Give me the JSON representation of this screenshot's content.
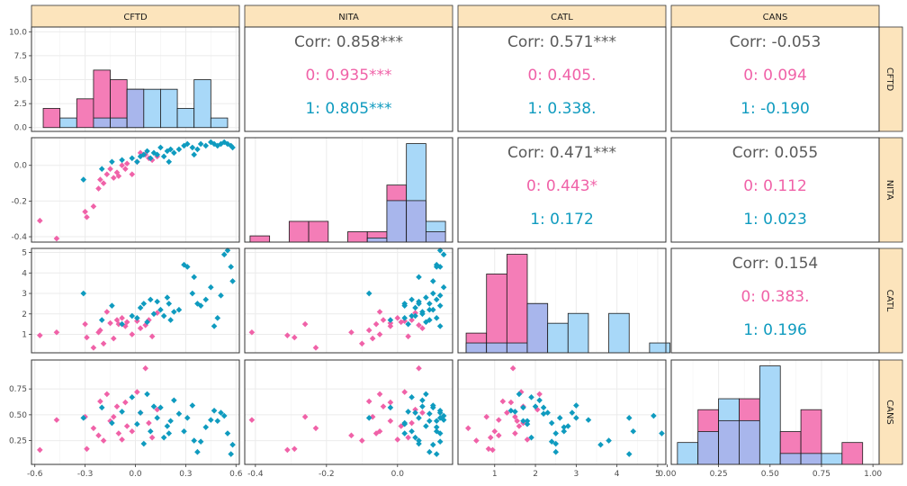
{
  "chart_data": {
    "type": "scatter-matrix",
    "variables": [
      "CFTD",
      "NITA",
      "CATL",
      "CANS"
    ],
    "colors": {
      "group0": "#F062A8",
      "group1": "#0F9BBF",
      "hist0": "#F47DB7",
      "hist1": "#A8D8F8",
      "overlap": "#A8B6EC",
      "strip": "#FCE4BC",
      "overall": "#5A5A5A"
    },
    "axes": {
      "CFTD": {
        "range": [
          -0.62,
          0.62
        ],
        "ticks": [
          "-0.6",
          "-0.3",
          "0.0",
          "0.3",
          "0.6"
        ],
        "tick_values": [
          -0.6,
          -0.3,
          0.0,
          0.3,
          0.6
        ]
      },
      "NITA": {
        "range": [
          -0.43,
          0.155
        ],
        "ticks": [
          "-0.4",
          "-0.2",
          "0.0"
        ],
        "tick_values": [
          -0.4,
          -0.2,
          0.0
        ]
      },
      "CATL": {
        "range": [
          0.1,
          5.2
        ],
        "ticks": [
          "1",
          "2",
          "3",
          "4",
          "5"
        ],
        "tick_values": [
          1,
          2,
          3,
          4,
          5
        ]
      },
      "CANS": {
        "range": [
          0.02,
          1.03
        ],
        "ticks": [
          "0.00",
          "0.25",
          "0.50",
          "0.75",
          "1.00"
        ],
        "tick_values": [
          0.0,
          0.25,
          0.5,
          0.75,
          1.0
        ]
      },
      "CANS_y": {
        "ticks": [
          "0.25",
          "0.50",
          "0.75"
        ],
        "tick_values": [
          0.25,
          0.5,
          0.75
        ]
      },
      "CFTD_count": {
        "range": [
          -0.4,
          10.5
        ],
        "ticks": [
          "0.0",
          "2.5",
          "5.0",
          "7.5",
          "10.0"
        ],
        "tick_values": [
          0,
          2.5,
          5,
          7.5,
          10
        ]
      },
      "NITA_y": {
        "ticks": [
          "-0.4",
          "-0.2",
          "0.0"
        ],
        "tick_values": [
          -0.4,
          -0.2,
          0.0
        ]
      },
      "CATL_y": {
        "ticks": [
          "1",
          "2",
          "3",
          "4",
          "5"
        ],
        "tick_values": [
          1,
          2,
          3,
          4,
          5
        ]
      }
    },
    "correlations": [
      {
        "row": 0,
        "col": 1,
        "lines": [
          "Corr: 0.858***",
          "0: 0.935***",
          "1: 0.805***"
        ]
      },
      {
        "row": 0,
        "col": 2,
        "lines": [
          "Corr: 0.571***",
          "0: 0.405.",
          "1: 0.338."
        ]
      },
      {
        "row": 0,
        "col": 3,
        "lines": [
          "Corr: -0.053",
          "0: 0.094",
          "1: -0.190"
        ]
      },
      {
        "row": 1,
        "col": 2,
        "lines": [
          "Corr: 0.471***",
          "0: 0.443*",
          "1: 0.172"
        ]
      },
      {
        "row": 1,
        "col": 3,
        "lines": [
          "Corr: 0.055",
          "0: 0.112",
          "1: 0.023"
        ]
      },
      {
        "row": 2,
        "col": 3,
        "lines": [
          "Corr: 0.154",
          "0: 0.383.",
          "1: 0.196"
        ]
      }
    ],
    "histograms": {
      "CFTD": {
        "bins": [
          -0.55,
          -0.45,
          -0.35,
          -0.25,
          -0.15,
          -0.05,
          0.05,
          0.15,
          0.25,
          0.35,
          0.45,
          0.55
        ],
        "counts0": [
          2,
          0,
          3,
          6,
          5,
          4,
          0,
          0,
          0,
          0,
          0
        ],
        "counts1": [
          0,
          1,
          0,
          1,
          1,
          4,
          4,
          4,
          2,
          5,
          1
        ]
      },
      "NITA": {
        "bins": [
          -0.415,
          -0.36,
          -0.305,
          -0.25,
          -0.195,
          -0.14,
          -0.085,
          -0.03,
          0.025,
          0.08,
          0.135
        ],
        "counts0": [
          0.6,
          0,
          2,
          2,
          0,
          1,
          1,
          5.5,
          4,
          1
        ],
        "counts1": [
          0,
          0,
          0,
          0,
          0,
          0,
          0.4,
          4,
          9.5,
          2
        ]
      },
      "CATL": {
        "bins": [
          0.3,
          0.8,
          1.3,
          1.8,
          2.3,
          2.8,
          3.3,
          3.8,
          4.3,
          4.8,
          5.3
        ],
        "counts0": [
          2,
          8,
          10,
          5,
          0,
          0,
          0,
          0,
          0,
          0
        ],
        "counts1": [
          1,
          1,
          1,
          5,
          3,
          4,
          0,
          4,
          0,
          1
        ]
      },
      "CANS": {
        "bins": [
          0.05,
          0.15,
          0.25,
          0.35,
          0.45,
          0.55,
          0.65,
          0.75,
          0.85,
          0.95
        ],
        "counts0": [
          0,
          5,
          4,
          6,
          0,
          3,
          5,
          0,
          2
        ],
        "counts1": [
          2,
          3,
          6,
          4,
          9,
          1,
          1,
          1,
          0
        ]
      }
    },
    "points": {
      "group0": [
        [
          -0.57,
          -0.31,
          0.95,
          0.16
        ],
        [
          -0.47,
          -0.41,
          1.1,
          0.45
        ],
        [
          -0.3,
          -0.26,
          1.5,
          0.48
        ],
        [
          -0.29,
          -0.29,
          0.85,
          0.17
        ],
        [
          -0.25,
          -0.23,
          0.35,
          0.37
        ],
        [
          -0.22,
          -0.13,
          1.1,
          0.3
        ],
        [
          -0.21,
          -0.08,
          1.2,
          0.63
        ],
        [
          -0.19,
          -0.1,
          0.55,
          0.25
        ],
        [
          -0.17,
          -0.05,
          2.1,
          0.7
        ],
        [
          -0.15,
          -0.02,
          1.55,
          0.44
        ],
        [
          -0.13,
          -0.07,
          0.8,
          0.48
        ],
        [
          -0.11,
          -0.04,
          1.7,
          0.58
        ],
        [
          -0.1,
          -0.06,
          1.5,
          0.32
        ],
        [
          -0.08,
          0.0,
          1.8,
          0.26
        ],
        [
          -0.06,
          -0.02,
          1.4,
          0.62
        ],
        [
          -0.05,
          0.01,
          1.6,
          0.39
        ],
        [
          -0.02,
          -0.05,
          1.0,
          0.34
        ],
        [
          0.01,
          0.02,
          1.65,
          0.72
        ],
        [
          0.03,
          0.07,
          1.3,
          0.52
        ],
        [
          0.06,
          0.06,
          1.45,
          0.95
        ],
        [
          0.08,
          0.04,
          1.7,
          0.42
        ],
        [
          0.1,
          0.03,
          0.9,
          0.28
        ],
        [
          0.13,
          0.05,
          2.05,
          0.55
        ]
      ],
      "group1": [
        [
          -0.31,
          -0.08,
          3.0,
          0.47
        ],
        [
          -0.2,
          -0.02,
          1.7,
          0.57
        ],
        [
          -0.14,
          0.02,
          2.4,
          0.42
        ],
        [
          -0.08,
          0.03,
          1.5,
          0.53
        ],
        [
          -0.02,
          0.04,
          1.9,
          0.67
        ],
        [
          0.01,
          0.02,
          1.8,
          0.41
        ],
        [
          0.03,
          0.05,
          2.3,
          0.52
        ],
        [
          0.05,
          0.06,
          2.5,
          0.22
        ],
        [
          0.07,
          0.08,
          1.6,
          0.7
        ],
        [
          0.09,
          0.04,
          2.7,
          0.34
        ],
        [
          0.11,
          0.07,
          2.0,
          0.58
        ],
        [
          0.13,
          0.06,
          2.6,
          0.47
        ],
        [
          0.15,
          0.1,
          2.2,
          0.57
        ],
        [
          0.17,
          0.05,
          1.9,
          0.28
        ],
        [
          0.19,
          0.08,
          2.8,
          0.39
        ],
        [
          0.21,
          0.09,
          1.7,
          0.44
        ],
        [
          0.23,
          0.07,
          2.1,
          0.64
        ],
        [
          0.26,
          0.09,
          2.2,
          0.51
        ],
        [
          0.29,
          0.11,
          4.4,
          0.34
        ],
        [
          0.31,
          0.12,
          4.3,
          0.47
        ],
        [
          0.34,
          0.1,
          3.0,
          0.59
        ],
        [
          0.37,
          0.09,
          2.5,
          0.14
        ],
        [
          0.39,
          0.12,
          2.4,
          0.24
        ],
        [
          0.42,
          0.11,
          2.7,
          0.38
        ],
        [
          0.45,
          0.13,
          3.3,
          0.45
        ],
        [
          0.47,
          0.12,
          1.4,
          0.54
        ],
        [
          0.49,
          0.11,
          1.8,
          0.44
        ],
        [
          0.51,
          0.12,
          2.9,
          0.52
        ],
        [
          0.53,
          0.13,
          4.9,
          0.49
        ],
        [
          0.55,
          0.12,
          5.1,
          0.32
        ],
        [
          0.57,
          0.11,
          4.3,
          0.12
        ],
        [
          0.58,
          0.1,
          3.6,
          0.21
        ],
        [
          0.2,
          0.02,
          2.5,
          0.32
        ],
        [
          0.35,
          0.06,
          3.8,
          0.25
        ]
      ]
    }
  }
}
